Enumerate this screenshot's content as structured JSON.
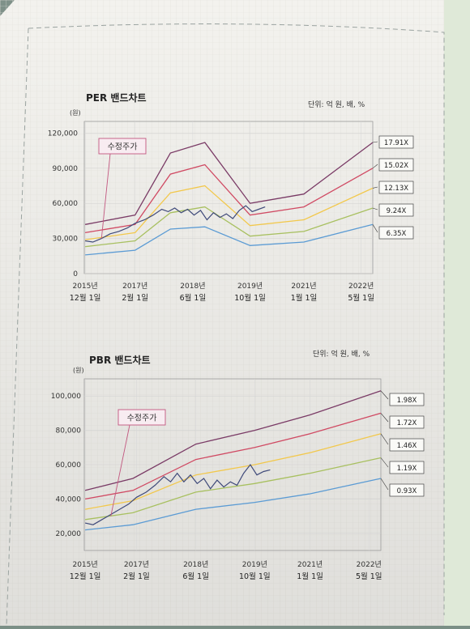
{
  "chart_data": [
    {
      "type": "line",
      "title": "PER 밴드차트",
      "unit_note": "단위: 억 원, 배, %",
      "y_unit": "(원)",
      "yticks": [
        "120,000",
        "90,000",
        "60,000",
        "30,000",
        "0"
      ],
      "ylim": [
        0,
        130000
      ],
      "xlim": [
        2015.9,
        2022.6
      ],
      "xticks": [
        {
          "x": 2015.92,
          "line1": "2015년",
          "line2": "12월 1일"
        },
        {
          "x": 2017.08,
          "line1": "2017년",
          "line2": "2월 1일"
        },
        {
          "x": 2018.42,
          "line1": "2018년",
          "line2": "6월 1일"
        },
        {
          "x": 2019.75,
          "line1": "2019년",
          "line2": "10월 1일"
        },
        {
          "x": 2021.0,
          "line1": "2021년",
          "line2": "1월 1일"
        },
        {
          "x": 2022.33,
          "line1": "2022년",
          "line2": "5월 1일"
        }
      ],
      "annotation": "수정주가",
      "series": [
        {
          "name": "17.91X",
          "color": "#7a3b66",
          "x": [
            2015.92,
            2017.08,
            2017.9,
            2018.7,
            2019.75,
            2021.0,
            2022.6
          ],
          "y": [
            42000,
            50000,
            103000,
            112000,
            60000,
            68000,
            112000
          ]
        },
        {
          "name": "15.02X",
          "color": "#d04a63",
          "x": [
            2015.92,
            2017.08,
            2017.9,
            2018.7,
            2019.75,
            2021.0,
            2022.6
          ],
          "y": [
            35000,
            42000,
            85000,
            93000,
            50000,
            57000,
            90000
          ]
        },
        {
          "name": "12.13X",
          "color": "#f2c84c",
          "x": [
            2015.92,
            2017.08,
            2017.9,
            2018.7,
            2019.75,
            2021.0,
            2022.6
          ],
          "y": [
            29000,
            35000,
            69000,
            75000,
            41000,
            46000,
            73000
          ]
        },
        {
          "name": "9.24X",
          "color": "#a8c060",
          "x": [
            2015.92,
            2017.08,
            2017.9,
            2018.7,
            2019.75,
            2021.0,
            2022.6
          ],
          "y": [
            23000,
            28000,
            52000,
            57000,
            32000,
            36000,
            56000
          ]
        },
        {
          "name": "6.35X",
          "color": "#5b9bd4",
          "x": [
            2015.92,
            2017.08,
            2017.9,
            2018.7,
            2019.75,
            2021.0,
            2022.6
          ],
          "y": [
            16000,
            20000,
            38000,
            40000,
            24000,
            27000,
            42000
          ]
        }
      ],
      "price": {
        "name": "수정주가",
        "color": "#3f4a7a",
        "x": [
          2015.92,
          2016.1,
          2016.3,
          2016.5,
          2016.7,
          2016.9,
          2017.08,
          2017.3,
          2017.5,
          2017.7,
          2017.85,
          2018.0,
          2018.15,
          2018.3,
          2018.45,
          2018.6,
          2018.75,
          2018.9,
          2019.05,
          2019.2,
          2019.35,
          2019.5,
          2019.65,
          2019.8,
          2019.95,
          2020.1
        ],
        "y": [
          28000,
          27000,
          30000,
          34000,
          36000,
          39000,
          43000,
          46000,
          50000,
          55000,
          53000,
          56000,
          52000,
          55000,
          50000,
          54000,
          46000,
          52000,
          48000,
          51000,
          47000,
          54000,
          58000,
          53000,
          55000,
          57000
        ]
      }
    },
    {
      "type": "line",
      "title": "PBR 밴드차트",
      "unit_note": "단위: 억 원, 배, %",
      "y_unit": "(원)",
      "yticks": [
        "100,000",
        "80,000",
        "60,000",
        "40,000",
        "20,000"
      ],
      "ylim": [
        10000,
        110000
      ],
      "xlim": [
        2015.9,
        2022.6
      ],
      "xticks": [
        {
          "x": 2015.92,
          "line1": "2015년",
          "line2": "12월 1일"
        },
        {
          "x": 2017.08,
          "line1": "2017년",
          "line2": "2월 1일"
        },
        {
          "x": 2018.42,
          "line1": "2018년",
          "line2": "6월 1일"
        },
        {
          "x": 2019.75,
          "line1": "2019년",
          "line2": "10월 1일"
        },
        {
          "x": 2021.0,
          "line1": "2021년",
          "line2": "1월 1일"
        },
        {
          "x": 2022.33,
          "line1": "2022년",
          "line2": "5월 1일"
        }
      ],
      "annotation": "수정주가",
      "series": [
        {
          "name": "1.98X",
          "color": "#7a3b66",
          "x": [
            2015.92,
            2017.0,
            2018.42,
            2019.75,
            2021.0,
            2022.6
          ],
          "y": [
            45000,
            52000,
            72000,
            80000,
            89000,
            103000
          ]
        },
        {
          "name": "1.72X",
          "color": "#d04a63",
          "x": [
            2015.92,
            2017.0,
            2018.42,
            2019.75,
            2021.0,
            2022.6
          ],
          "y": [
            40000,
            45000,
            63000,
            70000,
            78000,
            90000
          ]
        },
        {
          "name": "1.46X",
          "color": "#f2c84c",
          "x": [
            2015.92,
            2017.0,
            2018.42,
            2019.75,
            2021.0,
            2022.6
          ],
          "y": [
            34000,
            39000,
            54000,
            60000,
            67000,
            78000
          ]
        },
        {
          "name": "1.19X",
          "color": "#a8c060",
          "x": [
            2015.92,
            2017.0,
            2018.42,
            2019.75,
            2021.0,
            2022.6
          ],
          "y": [
            28000,
            32000,
            44000,
            49000,
            55000,
            64000
          ]
        },
        {
          "name": "0.93X",
          "color": "#5b9bd4",
          "x": [
            2015.92,
            2017.0,
            2018.42,
            2019.75,
            2021.0,
            2022.6
          ],
          "y": [
            22000,
            25000,
            34000,
            38000,
            43000,
            52000
          ]
        }
      ],
      "price": {
        "name": "수정주가",
        "color": "#3f4a7a",
        "x": [
          2015.92,
          2016.1,
          2016.3,
          2016.5,
          2016.7,
          2016.9,
          2017.08,
          2017.3,
          2017.5,
          2017.7,
          2017.85,
          2018.0,
          2018.15,
          2018.3,
          2018.45,
          2018.6,
          2018.75,
          2018.9,
          2019.05,
          2019.2,
          2019.35,
          2019.5,
          2019.65,
          2019.8,
          2019.95,
          2020.1
        ],
        "y": [
          26000,
          25000,
          28000,
          31000,
          34000,
          37000,
          41000,
          44000,
          48000,
          53000,
          50000,
          55000,
          50000,
          54000,
          49000,
          52000,
          46000,
          51000,
          47000,
          50000,
          48000,
          55000,
          60000,
          54000,
          56000,
          57000
        ]
      }
    }
  ]
}
